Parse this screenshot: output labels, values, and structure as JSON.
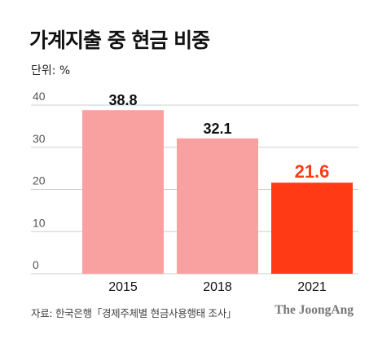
{
  "header": {
    "title": "가계지출 중 현금 비중",
    "unit": "단위: %"
  },
  "footer": {
    "source": "자료: 한국은행「경제주체별 현금사용행태 조사」",
    "brand": "The JoongAng"
  },
  "colors": {
    "bar": "#f9a0a0",
    "highlight": "#ff3a14",
    "grid": "#cfcfcf",
    "label": "#111111",
    "highlight_label": "#ff3a14",
    "tick": "#555555"
  },
  "chart_data": {
    "type": "bar",
    "categories": [
      "2015",
      "2018",
      "2021"
    ],
    "values": [
      38.8,
      32.1,
      21.6
    ],
    "value_labels": [
      "38.8",
      "32.1",
      "21.6"
    ],
    "highlight_index": 2,
    "ylim": [
      0,
      40
    ],
    "yticks": [
      "0",
      "10",
      "20",
      "30",
      "40"
    ],
    "grid": true,
    "legend": "none"
  }
}
